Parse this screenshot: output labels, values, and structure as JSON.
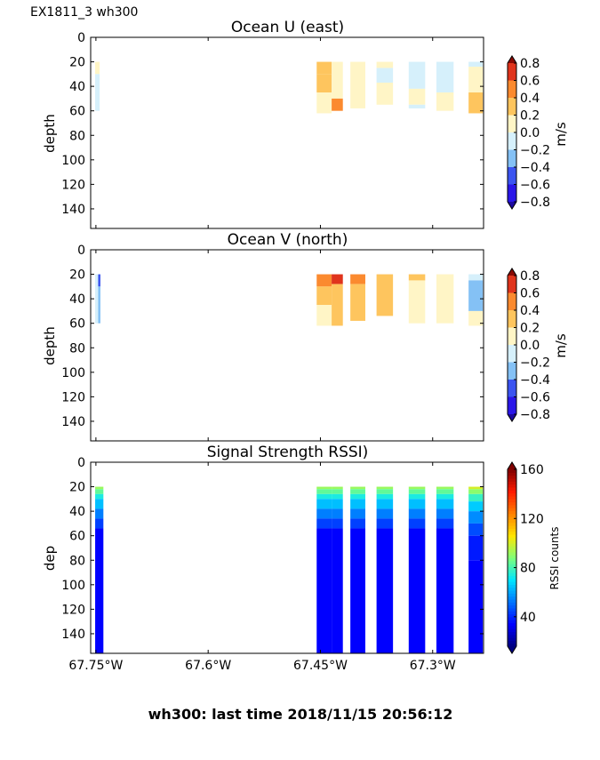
{
  "header": {
    "run_label": "EX1811_3 wh300"
  },
  "footer": {
    "caption": "wh300: last time 2018/11/15 20:56:12"
  },
  "axes": {
    "x_ticks": [
      {
        "value": -67.75,
        "label": "67.75°W"
      },
      {
        "value": -67.6,
        "label": "67.6°W"
      },
      {
        "value": -67.45,
        "label": "67.45°W"
      },
      {
        "value": -67.3,
        "label": "67.3°W"
      }
    ],
    "xlim": [
      -67.757,
      -67.232
    ],
    "ylim": [
      156,
      0
    ],
    "y_ticks": [
      0,
      20,
      40,
      60,
      80,
      100,
      120,
      140
    ]
  },
  "colormaps": {
    "velocity_levels": [
      {
        "from": -0.8,
        "to": -0.6,
        "color": "#2a16e8"
      },
      {
        "from": -0.6,
        "to": -0.4,
        "color": "#3b54f0"
      },
      {
        "from": -0.4,
        "to": -0.2,
        "color": "#84c1f5"
      },
      {
        "from": -0.2,
        "to": 0.0,
        "color": "#d6f0fb"
      },
      {
        "from": 0.0,
        "to": 0.2,
        "color": "#fff5c6"
      },
      {
        "from": 0.2,
        "to": 0.4,
        "color": "#fec55e"
      },
      {
        "from": 0.4,
        "to": 0.6,
        "color": "#fb8a2f"
      },
      {
        "from": 0.6,
        "to": 0.8,
        "color": "#e0341c"
      }
    ],
    "velocity_under": "#1c0aa0",
    "velocity_over": "#8a0a04",
    "rssi_stops": [
      {
        "v": 16,
        "color": "#00007f"
      },
      {
        "v": 34,
        "color": "#0000ff"
      },
      {
        "v": 70,
        "color": "#00e5ff"
      },
      {
        "v": 88,
        "color": "#7dff7a"
      },
      {
        "v": 106,
        "color": "#ffe600"
      },
      {
        "v": 142,
        "color": "#ff1a00"
      },
      {
        "v": 160,
        "color": "#7f0000"
      }
    ]
  },
  "chart_data": [
    {
      "type": "heatmap",
      "title": "Ocean U (east)",
      "xlabel": "",
      "ylabel": "depth",
      "colorbar_label": "m/s",
      "colorbar_range": [
        -0.8,
        0.8
      ],
      "colorbar_ticks": [
        {
          "value": 0.8,
          "label": "0.8"
        },
        {
          "value": 0.6,
          "label": "0.6"
        },
        {
          "value": 0.4,
          "label": "0.4"
        },
        {
          "value": 0.2,
          "label": "0.2"
        },
        {
          "value": 0.0,
          "label": "0.0"
        },
        {
          "value": -0.2,
          "label": "−0.2"
        },
        {
          "value": -0.4,
          "label": "−0.4"
        },
        {
          "value": -0.6,
          "label": "−0.6"
        },
        {
          "value": -0.8,
          "label": "−0.8"
        }
      ],
      "profiles": [
        {
          "lon_start": -67.751,
          "lon_end": -67.745,
          "cells": [
            {
              "z0": 20,
              "z1": 30,
              "v": 0.1
            },
            {
              "z0": 30,
              "z1": 60,
              "v": -0.1
            }
          ]
        },
        {
          "lon_start": -67.455,
          "lon_end": -67.435,
          "cells": [
            {
              "z0": 20,
              "z1": 30,
              "v": 0.35
            },
            {
              "z0": 30,
              "z1": 45,
              "v": 0.25
            },
            {
              "z0": 45,
              "z1": 62,
              "v": 0.1
            }
          ]
        },
        {
          "lon_start": -67.435,
          "lon_end": -67.42,
          "cells": [
            {
              "z0": 20,
              "z1": 50,
              "v": 0.1
            },
            {
              "z0": 50,
              "z1": 60,
              "v": 0.45
            }
          ]
        },
        {
          "lon_start": -67.41,
          "lon_end": -67.39,
          "cells": [
            {
              "z0": 20,
              "z1": 58,
              "v": 0.1
            }
          ]
        },
        {
          "lon_start": -67.375,
          "lon_end": -67.353,
          "cells": [
            {
              "z0": 20,
              "z1": 25,
              "v": 0.1
            },
            {
              "z0": 25,
              "z1": 37,
              "v": -0.1
            },
            {
              "z0": 37,
              "z1": 55,
              "v": 0.1
            }
          ]
        },
        {
          "lon_start": -67.332,
          "lon_end": -67.31,
          "cells": [
            {
              "z0": 20,
              "z1": 42,
              "v": -0.1
            },
            {
              "z0": 42,
              "z1": 55,
              "v": 0.1
            },
            {
              "z0": 55,
              "z1": 58,
              "v": -0.1
            }
          ]
        },
        {
          "lon_start": -67.295,
          "lon_end": -67.272,
          "cells": [
            {
              "z0": 20,
              "z1": 45,
              "v": -0.1
            },
            {
              "z0": 45,
              "z1": 60,
              "v": 0.1
            }
          ]
        },
        {
          "lon_start": -67.252,
          "lon_end": -67.233,
          "cells": [
            {
              "z0": 20,
              "z1": 24,
              "v": -0.1
            },
            {
              "z0": 24,
              "z1": 45,
              "v": 0.1
            },
            {
              "z0": 45,
              "z1": 62,
              "v": 0.25
            }
          ]
        }
      ]
    },
    {
      "type": "heatmap",
      "title": "Ocean V (north)",
      "xlabel": "",
      "ylabel": "depth",
      "colorbar_label": "m/s",
      "colorbar_range": [
        -0.8,
        0.8
      ],
      "colorbar_ticks": [
        {
          "value": 0.8,
          "label": "0.8"
        },
        {
          "value": 0.6,
          "label": "0.6"
        },
        {
          "value": 0.4,
          "label": "0.4"
        },
        {
          "value": 0.2,
          "label": "0.2"
        },
        {
          "value": 0.0,
          "label": "0.0"
        },
        {
          "value": -0.2,
          "label": "−0.2"
        },
        {
          "value": -0.4,
          "label": "−0.4"
        },
        {
          "value": -0.6,
          "label": "−0.6"
        },
        {
          "value": -0.8,
          "label": "−0.8"
        }
      ],
      "profiles": [
        {
          "lon_start": -67.751,
          "lon_end": -67.747,
          "cells": [
            {
              "z0": 20,
              "z1": 60,
              "v": -0.1
            }
          ]
        },
        {
          "lon_start": -67.747,
          "lon_end": -67.744,
          "cells": [
            {
              "z0": 20,
              "z1": 30,
              "v": -0.5
            },
            {
              "z0": 30,
              "z1": 60,
              "v": -0.3
            }
          ]
        },
        {
          "lon_start": -67.455,
          "lon_end": -67.435,
          "cells": [
            {
              "z0": 20,
              "z1": 30,
              "v": 0.5
            },
            {
              "z0": 30,
              "z1": 45,
              "v": 0.3
            },
            {
              "z0": 45,
              "z1": 62,
              "v": 0.1
            }
          ]
        },
        {
          "lon_start": -67.435,
          "lon_end": -67.42,
          "cells": [
            {
              "z0": 20,
              "z1": 28,
              "v": 0.65
            },
            {
              "z0": 28,
              "z1": 62,
              "v": 0.3
            }
          ]
        },
        {
          "lon_start": -67.41,
          "lon_end": -67.39,
          "cells": [
            {
              "z0": 20,
              "z1": 28,
              "v": 0.5
            },
            {
              "z0": 28,
              "z1": 58,
              "v": 0.3
            }
          ]
        },
        {
          "lon_start": -67.375,
          "lon_end": -67.353,
          "cells": [
            {
              "z0": 20,
              "z1": 54,
              "v": 0.3
            }
          ]
        },
        {
          "lon_start": -67.332,
          "lon_end": -67.31,
          "cells": [
            {
              "z0": 20,
              "z1": 25,
              "v": 0.3
            },
            {
              "z0": 25,
              "z1": 60,
              "v": 0.1
            }
          ]
        },
        {
          "lon_start": -67.295,
          "lon_end": -67.272,
          "cells": [
            {
              "z0": 20,
              "z1": 60,
              "v": 0.1
            }
          ]
        },
        {
          "lon_start": -67.252,
          "lon_end": -67.233,
          "cells": [
            {
              "z0": 20,
              "z1": 25,
              "v": -0.1
            },
            {
              "z0": 25,
              "z1": 50,
              "v": -0.3
            },
            {
              "z0": 50,
              "z1": 62,
              "v": 0.1
            }
          ]
        }
      ]
    },
    {
      "type": "heatmap",
      "title": "Signal Strength RSSI)",
      "xlabel": "",
      "ylabel": "dep",
      "colorbar_label": "RSSI counts",
      "colorbar_range": [
        16,
        160
      ],
      "colorbar_ticks": [
        {
          "value": 160,
          "label": "160"
        },
        {
          "value": 120,
          "label": "120"
        },
        {
          "value": 80,
          "label": "80"
        },
        {
          "value": 40,
          "label": "40"
        }
      ],
      "profiles": [
        {
          "lon_start": -67.751,
          "lon_end": -67.74,
          "cells": [
            {
              "z0": 20,
              "z1": 22,
              "v": 92
            },
            {
              "z0": 22,
              "z1": 26,
              "v": 84
            },
            {
              "z0": 26,
              "z1": 30,
              "v": 74
            },
            {
              "z0": 30,
              "z1": 38,
              "v": 64
            },
            {
              "z0": 38,
              "z1": 46,
              "v": 54
            },
            {
              "z0": 46,
              "z1": 54,
              "v": 44
            },
            {
              "z0": 54,
              "z1": 156,
              "v": 34
            }
          ]
        },
        {
          "lon_start": -67.455,
          "lon_end": -67.435,
          "cells": [
            {
              "z0": 20,
              "z1": 22,
              "v": 92
            },
            {
              "z0": 22,
              "z1": 26,
              "v": 84
            },
            {
              "z0": 26,
              "z1": 30,
              "v": 74
            },
            {
              "z0": 30,
              "z1": 38,
              "v": 64
            },
            {
              "z0": 38,
              "z1": 46,
              "v": 54
            },
            {
              "z0": 46,
              "z1": 54,
              "v": 44
            },
            {
              "z0": 54,
              "z1": 156,
              "v": 34
            }
          ]
        },
        {
          "lon_start": -67.435,
          "lon_end": -67.42,
          "cells": [
            {
              "z0": 20,
              "z1": 22,
              "v": 92
            },
            {
              "z0": 22,
              "z1": 26,
              "v": 84
            },
            {
              "z0": 26,
              "z1": 30,
              "v": 74
            },
            {
              "z0": 30,
              "z1": 38,
              "v": 64
            },
            {
              "z0": 38,
              "z1": 46,
              "v": 54
            },
            {
              "z0": 46,
              "z1": 54,
              "v": 44
            },
            {
              "z0": 54,
              "z1": 156,
              "v": 34
            }
          ]
        },
        {
          "lon_start": -67.41,
          "lon_end": -67.39,
          "cells": [
            {
              "z0": 20,
              "z1": 22,
              "v": 92
            },
            {
              "z0": 22,
              "z1": 26,
              "v": 84
            },
            {
              "z0": 26,
              "z1": 30,
              "v": 74
            },
            {
              "z0": 30,
              "z1": 38,
              "v": 64
            },
            {
              "z0": 38,
              "z1": 46,
              "v": 54
            },
            {
              "z0": 46,
              "z1": 54,
              "v": 44
            },
            {
              "z0": 54,
              "z1": 156,
              "v": 34
            }
          ]
        },
        {
          "lon_start": -67.375,
          "lon_end": -67.353,
          "cells": [
            {
              "z0": 20,
              "z1": 22,
              "v": 92
            },
            {
              "z0": 22,
              "z1": 26,
              "v": 84
            },
            {
              "z0": 26,
              "z1": 30,
              "v": 74
            },
            {
              "z0": 30,
              "z1": 38,
              "v": 64
            },
            {
              "z0": 38,
              "z1": 46,
              "v": 54
            },
            {
              "z0": 46,
              "z1": 54,
              "v": 44
            },
            {
              "z0": 54,
              "z1": 156,
              "v": 34
            }
          ]
        },
        {
          "lon_start": -67.332,
          "lon_end": -67.31,
          "cells": [
            {
              "z0": 20,
              "z1": 22,
              "v": 92
            },
            {
              "z0": 22,
              "z1": 26,
              "v": 84
            },
            {
              "z0": 26,
              "z1": 30,
              "v": 74
            },
            {
              "z0": 30,
              "z1": 38,
              "v": 64
            },
            {
              "z0": 38,
              "z1": 46,
              "v": 54
            },
            {
              "z0": 46,
              "z1": 54,
              "v": 44
            },
            {
              "z0": 54,
              "z1": 156,
              "v": 34
            }
          ]
        },
        {
          "lon_start": -67.295,
          "lon_end": -67.272,
          "cells": [
            {
              "z0": 20,
              "z1": 22,
              "v": 92
            },
            {
              "z0": 22,
              "z1": 26,
              "v": 84
            },
            {
              "z0": 26,
              "z1": 30,
              "v": 74
            },
            {
              "z0": 30,
              "z1": 38,
              "v": 64
            },
            {
              "z0": 38,
              "z1": 46,
              "v": 54
            },
            {
              "z0": 46,
              "z1": 54,
              "v": 44
            },
            {
              "z0": 54,
              "z1": 156,
              "v": 34
            }
          ]
        },
        {
          "lon_start": -67.252,
          "lon_end": -67.233,
          "cells": [
            {
              "z0": 20,
              "z1": 22,
              "v": 100
            },
            {
              "z0": 22,
              "z1": 26,
              "v": 90
            },
            {
              "z0": 26,
              "z1": 32,
              "v": 78
            },
            {
              "z0": 32,
              "z1": 40,
              "v": 66
            },
            {
              "z0": 40,
              "z1": 50,
              "v": 56
            },
            {
              "z0": 50,
              "z1": 60,
              "v": 46
            },
            {
              "z0": 60,
              "z1": 80,
              "v": 38
            },
            {
              "z0": 80,
              "z1": 156,
              "v": 34
            }
          ]
        }
      ]
    }
  ]
}
